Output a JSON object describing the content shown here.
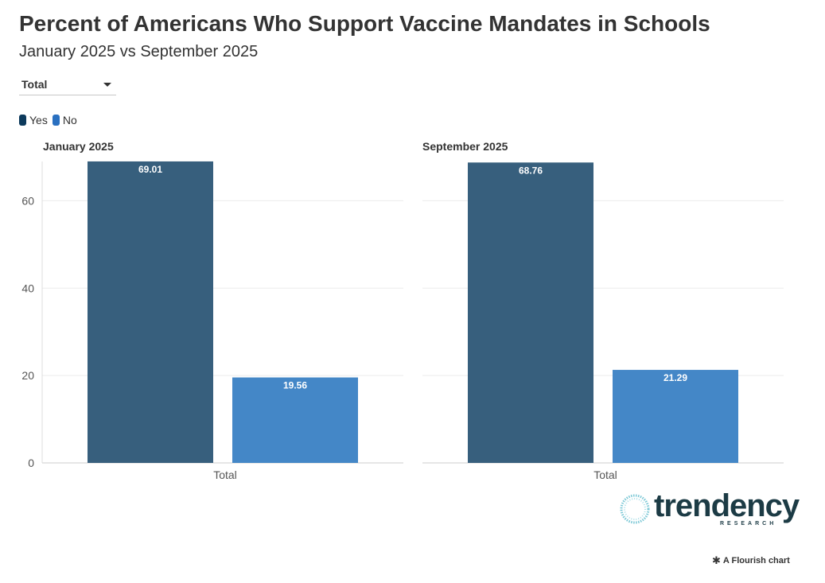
{
  "header": {
    "title": "Percent of Americans Who Support Vaccine Mandates in Schools",
    "subtitle": "January 2025 vs September 2025"
  },
  "filter": {
    "selected": "Total"
  },
  "legend": [
    {
      "label": "Yes",
      "color": "#0d3a5c"
    },
    {
      "label": "No",
      "color": "#2a70c0"
    }
  ],
  "chart_data": {
    "type": "bar",
    "title": "Percent of Americans Who Support Vaccine Mandates in Schools",
    "subtitle": "January 2025 vs September 2025",
    "ylim": [
      0,
      69
    ],
    "yticks": [
      0,
      20,
      40,
      60
    ],
    "grid": true,
    "legend_position": "top-left",
    "panels": [
      {
        "title": "January 2025",
        "categories": [
          "Total"
        ],
        "series": [
          {
            "name": "Yes",
            "values": [
              69.01
            ],
            "color": "#375f7d"
          },
          {
            "name": "No",
            "values": [
              19.56
            ],
            "color": "#4487c7"
          }
        ]
      },
      {
        "title": "September 2025",
        "categories": [
          "Total"
        ],
        "series": [
          {
            "name": "Yes",
            "values": [
              68.76
            ],
            "color": "#375f7d"
          },
          {
            "name": "No",
            "values": [
              21.29
            ],
            "color": "#4487c7"
          }
        ]
      }
    ]
  },
  "branding": {
    "logo_word": "trendency",
    "logo_sub": "RESEARCH",
    "credit": "A Flourish chart",
    "credit_icon": "asterisk-icon"
  }
}
